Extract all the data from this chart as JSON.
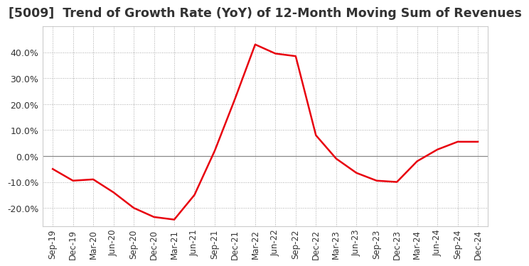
{
  "title": "[5009]  Trend of Growth Rate (YoY) of 12-Month Moving Sum of Revenues",
  "title_fontsize": 12.5,
  "line_color": "#e8000d",
  "background_color": "#ffffff",
  "plot_bg_color": "#ffffff",
  "grid_color": "#aaaaaa",
  "ylim": [
    -0.27,
    0.5
  ],
  "yticks": [
    -0.2,
    -0.1,
    0.0,
    0.1,
    0.2,
    0.3,
    0.4
  ],
  "x_labels": [
    "Sep-19",
    "Dec-19",
    "Mar-20",
    "Jun-20",
    "Sep-20",
    "Dec-20",
    "Mar-21",
    "Jun-21",
    "Sep-21",
    "Dec-21",
    "Mar-22",
    "Jun-22",
    "Sep-22",
    "Dec-22",
    "Mar-23",
    "Jun-23",
    "Sep-23",
    "Dec-23",
    "Mar-24",
    "Jun-24",
    "Sep-24",
    "Dec-24"
  ],
  "y_values": [
    -0.05,
    -0.095,
    -0.09,
    -0.14,
    -0.2,
    -0.235,
    -0.245,
    -0.15,
    0.02,
    0.22,
    0.43,
    0.395,
    0.385,
    0.08,
    -0.01,
    -0.065,
    -0.095,
    -0.1,
    -0.02,
    0.025,
    0.055,
    0.055
  ]
}
